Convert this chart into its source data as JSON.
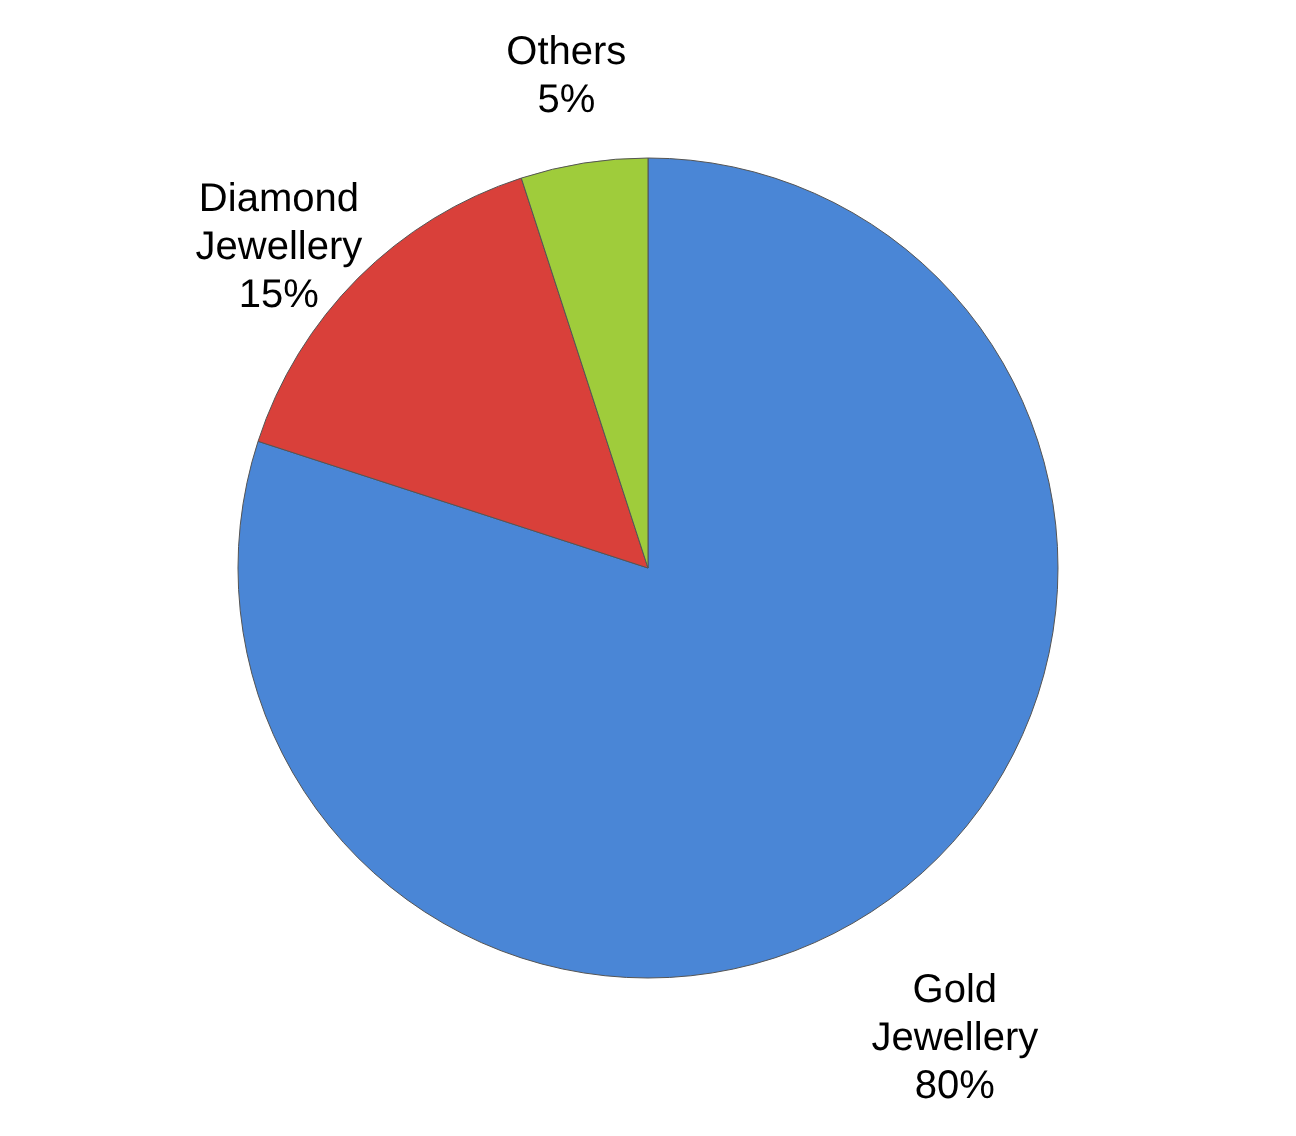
{
  "chart_data": {
    "type": "pie",
    "categories": [
      "Gold Jewellery",
      "Diamond Jewellery",
      "Others"
    ],
    "values": [
      80,
      15,
      5
    ],
    "colors": [
      "#4a86d6",
      "#d9403a",
      "#9fcc3b"
    ],
    "value_labels": [
      "80%",
      "15%",
      "5%"
    ]
  }
}
